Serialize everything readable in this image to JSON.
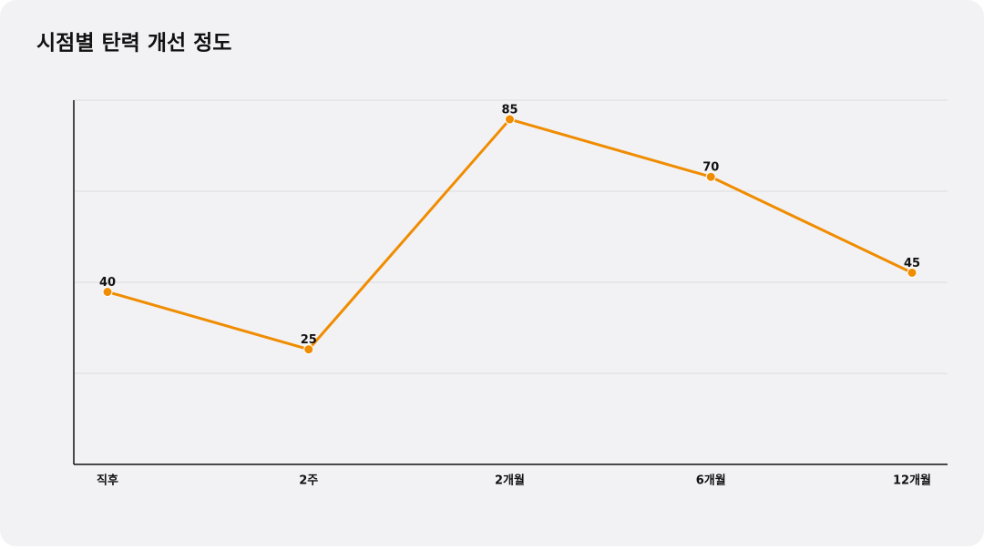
{
  "chart_data": {
    "type": "line",
    "title": "시점별 탄력 개선 정도",
    "categories": [
      "직후",
      "2주",
      "2개월",
      "6개월",
      "12개월"
    ],
    "series": [
      {
        "name": "탄력 개선 정도",
        "color": "#f08c00",
        "values": [
          40,
          25,
          85,
          70,
          45
        ]
      }
    ],
    "ylim": [
      -5,
      90
    ],
    "yticks": [
      18.75,
      42.5,
      66.25,
      90
    ],
    "grid": true
  }
}
